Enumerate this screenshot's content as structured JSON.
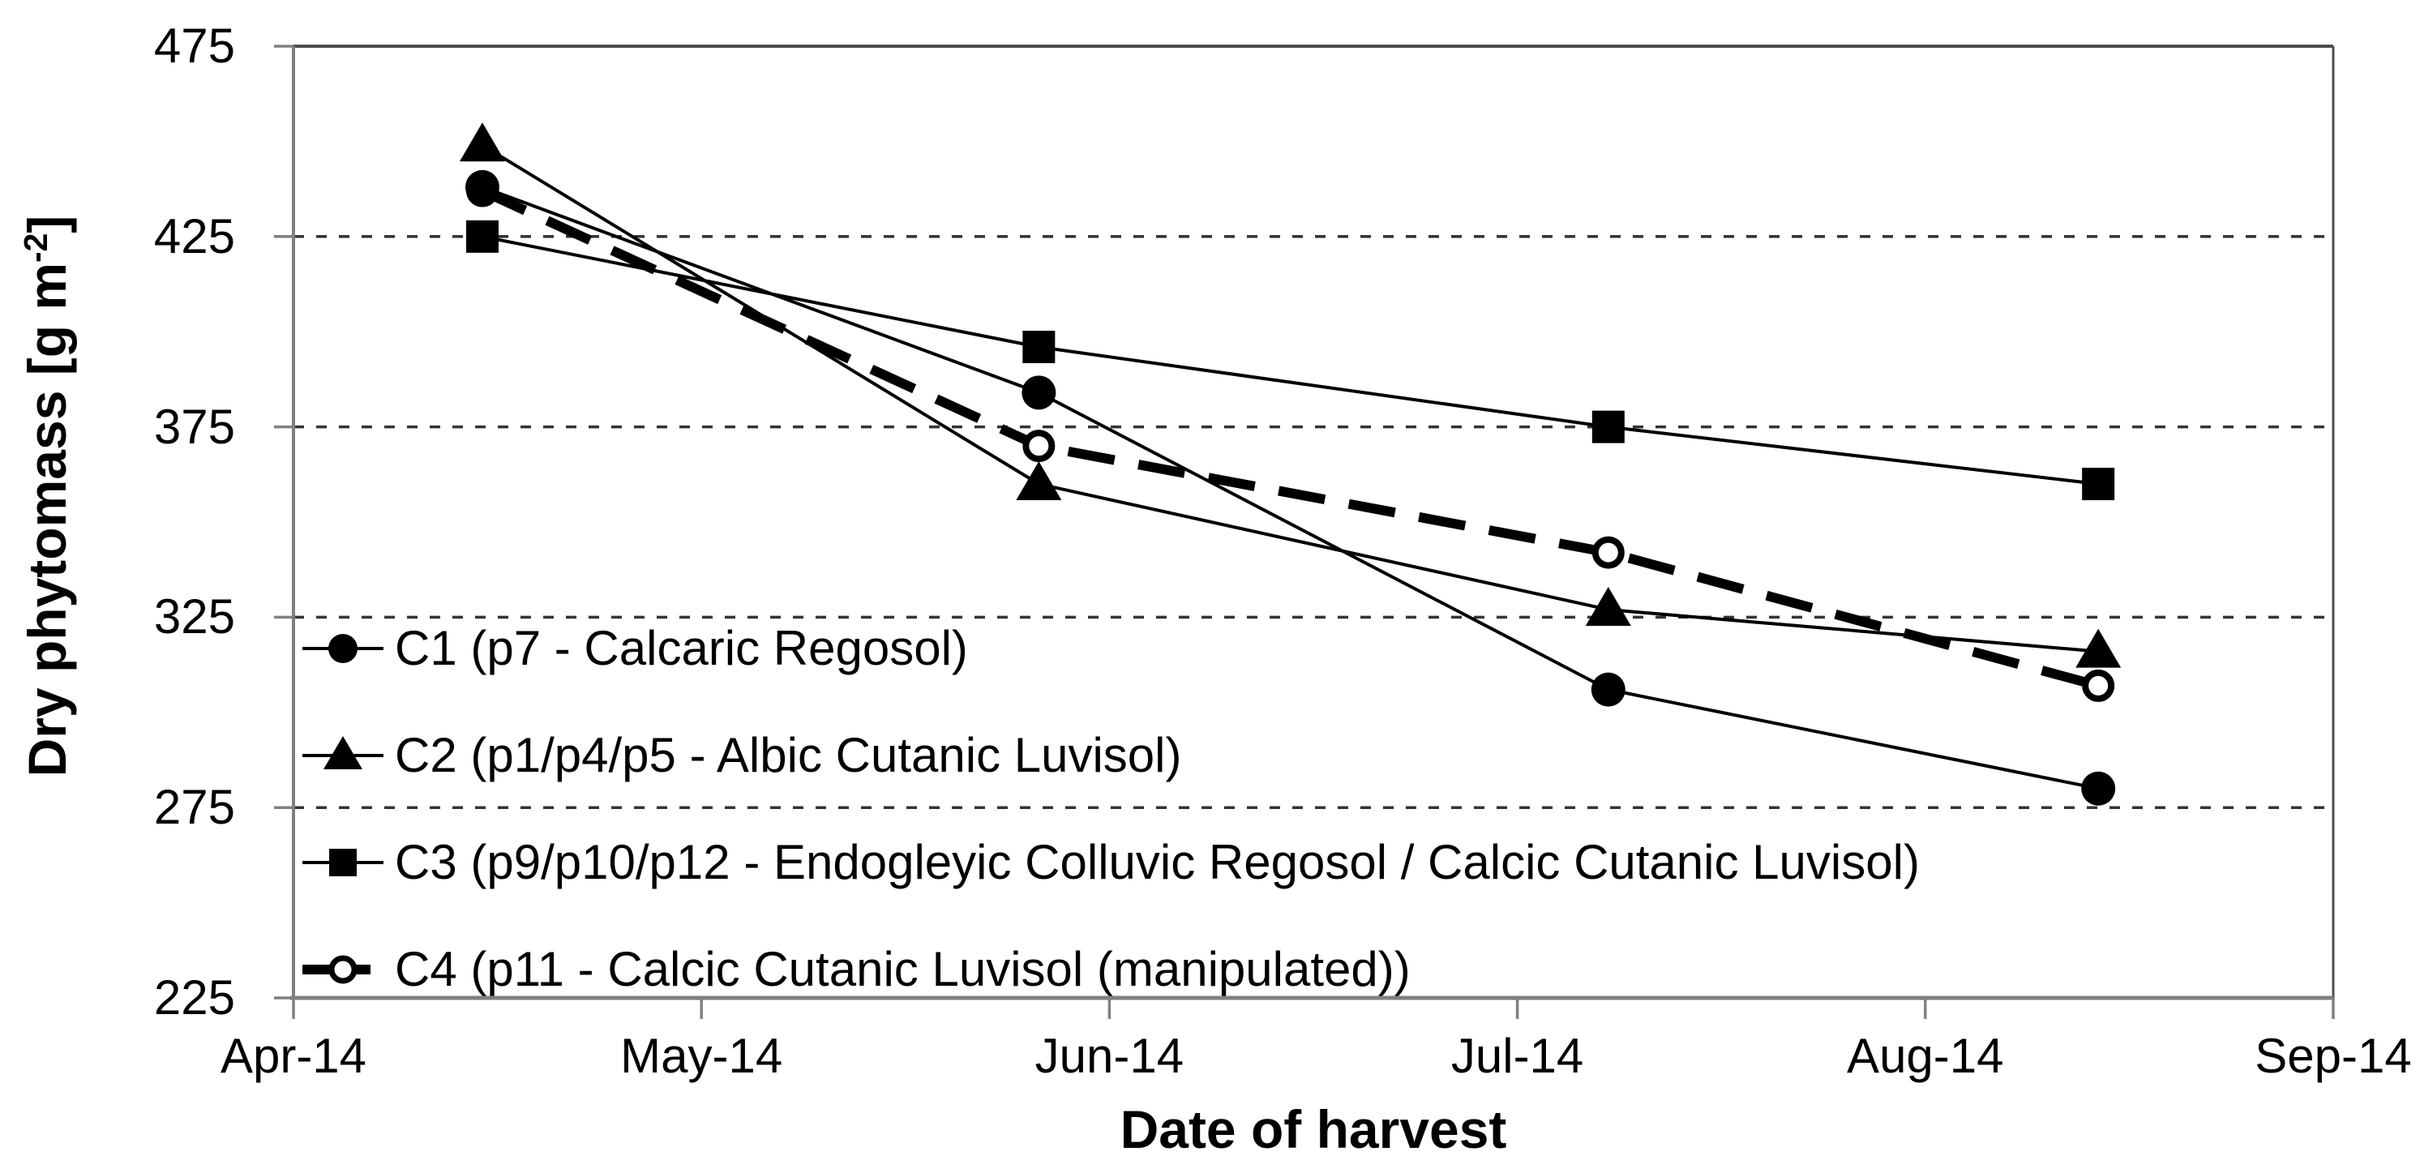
{
  "chart_data": {
    "type": "line",
    "title": "",
    "xlabel": "Date of harvest",
    "ylabel": "Dry phytomass [g m⁻²]",
    "ylabel_parts": {
      "prefix": "Dry phytomass [g m",
      "superscript": "-2",
      "suffix": "]"
    },
    "x_tick_labels": [
      "Apr-14",
      "May-14",
      "Jun-14",
      "Jul-14",
      "Aug-14",
      "Sep-14"
    ],
    "x_axis_months_range": [
      0,
      5
    ],
    "y_ticks": [
      475,
      425,
      375,
      325,
      275,
      225
    ],
    "ylim": [
      225,
      475
    ],
    "grid_y_values": [
      425,
      375,
      325,
      275
    ],
    "grid_style": "dashed-horizontal",
    "legend_position": "inside-left",
    "x_months_offset": [
      0.463,
      1.827,
      3.223,
      4.424
    ],
    "series": [
      {
        "name": "C1 (p7 - Calcaric Regosol)",
        "marker": "circle-filled",
        "line_style": "solid-thin",
        "values": [
          438,
          384,
          306,
          280
        ]
      },
      {
        "name": "C2 (p1/p4/p5 - Albic Cutanic Luvisol)",
        "marker": "triangle-filled",
        "line_style": "solid-thin",
        "values": [
          449,
          360,
          327,
          316
        ]
      },
      {
        "name": "C3 (p9/p10/p12 - Endogleyic Colluvic Regosol / Calcic Cutanic Luvisol)",
        "marker": "square-filled",
        "line_style": "solid-thin",
        "values": [
          425,
          396,
          375,
          360
        ]
      },
      {
        "name": "C4 (p11 - Calcic Cutanic Luvisol (manipulated))",
        "marker": "circle-open",
        "line_style": "dashed-thick",
        "values": [
          437,
          370,
          342,
          307
        ]
      }
    ],
    "colors": {
      "series": "#000000",
      "grid": "#333333",
      "axis": "#808080",
      "border": "#4d4d4d",
      "background": "#ffffff"
    }
  }
}
